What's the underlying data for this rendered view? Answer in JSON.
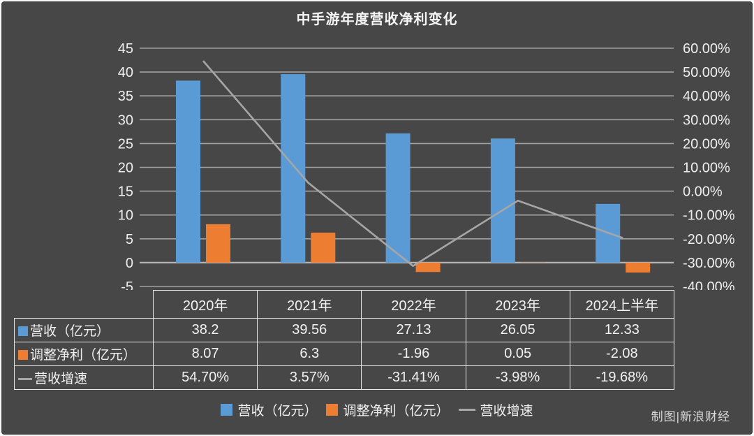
{
  "title": "中手游年度营收净利变化",
  "credit": "制图|新浪财经",
  "colors": {
    "background": "#474747",
    "revenue_bar": "#5b9bd5",
    "profit_bar": "#ed7d31",
    "growth_line": "#a6a6a6",
    "grid": "#a2a2a2",
    "zero_line": "#b5b5b5",
    "axis_text": "#eeeeee",
    "table_border": "#e8e8e8"
  },
  "chart_data": {
    "type": "bar",
    "subtype": "combo-bar-line-dual-axis",
    "title": "中手游年度营收净利变化",
    "categories": [
      "2020年",
      "2021年",
      "2022年",
      "2023年",
      "2024上半年"
    ],
    "series": [
      {
        "name": "营收（亿元）",
        "type": "bar",
        "axis": "left",
        "color": "#5b9bd5",
        "values": [
          38.2,
          39.56,
          27.13,
          26.05,
          12.33
        ]
      },
      {
        "name": "调整净利（亿元）",
        "type": "bar",
        "axis": "left",
        "color": "#ed7d31",
        "values": [
          8.07,
          6.3,
          -1.96,
          0.05,
          -2.08
        ]
      },
      {
        "name": "营收增速",
        "type": "line",
        "axis": "right",
        "color": "#a6a6a6",
        "values": [
          54.7,
          3.57,
          -31.41,
          -3.98,
          -19.68
        ]
      }
    ],
    "left_axis": {
      "min": -5,
      "max": 45,
      "step": 5,
      "tick_values": [
        45,
        40,
        35,
        30,
        25,
        20,
        15,
        10,
        5,
        0,
        -5
      ],
      "tick_labels": [
        "45",
        "40",
        "35",
        "30",
        "25",
        "20",
        "15",
        "10",
        "5",
        "0",
        "-5"
      ]
    },
    "right_axis": {
      "min": -40,
      "max": 60,
      "step": 10,
      "tick_values": [
        60,
        50,
        40,
        30,
        20,
        10,
        0,
        -10,
        -20,
        -30,
        -40
      ],
      "tick_labels": [
        "60.00%",
        "50.00%",
        "40.00%",
        "30.00%",
        "20.00%",
        "10.00%",
        "0.00%",
        "-10.00%",
        "-20.00%",
        "-30.00%",
        "-40.00%"
      ]
    },
    "grid": true,
    "legend_position": "bottom"
  },
  "table": {
    "corner": "",
    "columns": [
      "2020年",
      "2021年",
      "2022年",
      "2023年",
      "2024上半年"
    ],
    "rows": [
      {
        "label": "营收（亿元）",
        "marker": "square",
        "marker_color": "#5b9bd5",
        "values": [
          "38.2",
          "39.56",
          "27.13",
          "26.05",
          "12.33"
        ]
      },
      {
        "label": "调整净利（亿元）",
        "marker": "square",
        "marker_color": "#ed7d31",
        "values": [
          "8.07",
          "6.3",
          "-1.96",
          "0.05",
          "-2.08"
        ]
      },
      {
        "label": "营收增速",
        "marker": "line",
        "marker_color": "#a6a6a6",
        "values": [
          "54.70%",
          "3.57%",
          "-31.41%",
          "-3.98%",
          "-19.68%"
        ]
      }
    ]
  },
  "legend": {
    "items": [
      {
        "label": "营收（亿元）",
        "marker": "square",
        "color": "#5b9bd5"
      },
      {
        "label": "调整净利（亿元）",
        "marker": "square",
        "color": "#ed7d31"
      },
      {
        "label": "营收增速",
        "marker": "line",
        "color": "#a6a6a6"
      }
    ]
  }
}
